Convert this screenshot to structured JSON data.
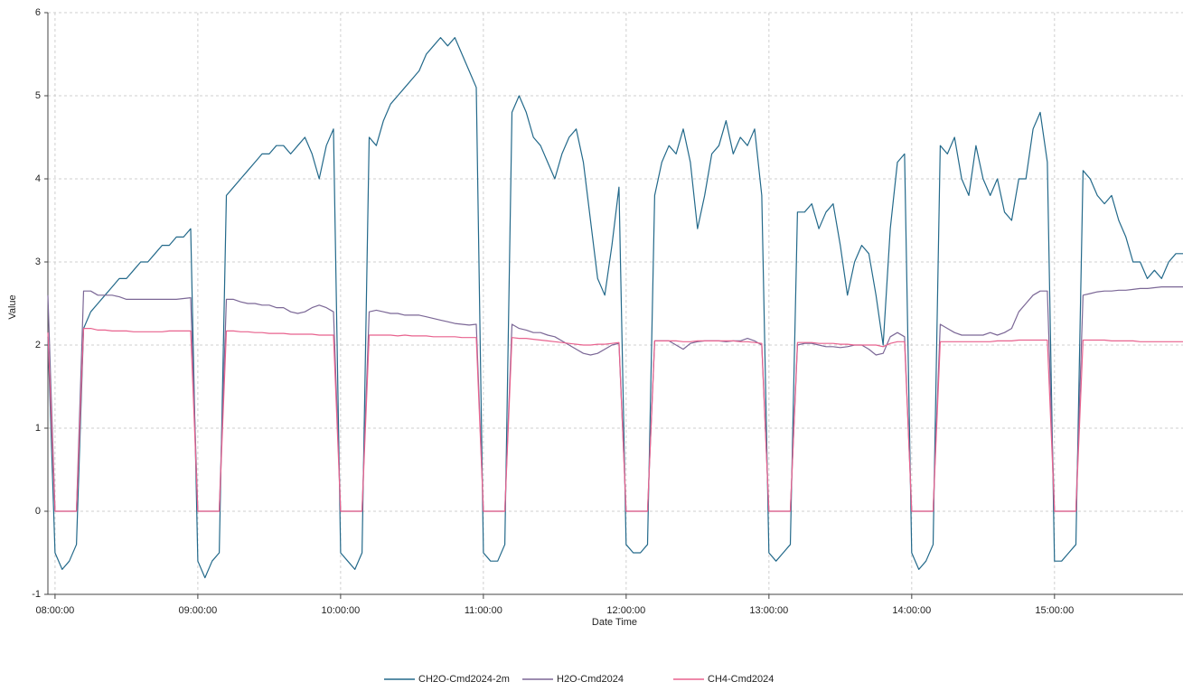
{
  "chart_data": {
    "type": "line",
    "x_label": "Date Time",
    "y_label": "Value",
    "x": [
      "07:57:00",
      "08:00:00",
      "08:03:00",
      "08:06:00",
      "08:09:00",
      "08:12:00",
      "08:15:00",
      "08:18:00",
      "08:21:00",
      "08:24:00",
      "08:27:00",
      "08:30:00",
      "08:33:00",
      "08:36:00",
      "08:39:00",
      "08:42:00",
      "08:45:00",
      "08:48:00",
      "08:51:00",
      "08:54:00",
      "08:57:00",
      "09:00:00",
      "09:03:00",
      "09:06:00",
      "09:09:00",
      "09:12:00",
      "09:15:00",
      "09:18:00",
      "09:21:00",
      "09:24:00",
      "09:27:00",
      "09:30:00",
      "09:33:00",
      "09:36:00",
      "09:39:00",
      "09:42:00",
      "09:45:00",
      "09:48:00",
      "09:51:00",
      "09:54:00",
      "09:57:00",
      "10:00:00",
      "10:03:00",
      "10:06:00",
      "10:09:00",
      "10:12:00",
      "10:15:00",
      "10:18:00",
      "10:21:00",
      "10:24:00",
      "10:27:00",
      "10:30:00",
      "10:33:00",
      "10:36:00",
      "10:39:00",
      "10:42:00",
      "10:45:00",
      "10:48:00",
      "10:51:00",
      "10:54:00",
      "10:57:00",
      "11:00:00",
      "11:03:00",
      "11:06:00",
      "11:09:00",
      "11:12:00",
      "11:15:00",
      "11:18:00",
      "11:21:00",
      "11:24:00",
      "11:27:00",
      "11:30:00",
      "11:33:00",
      "11:36:00",
      "11:39:00",
      "11:42:00",
      "11:45:00",
      "11:48:00",
      "11:51:00",
      "11:54:00",
      "11:57:00",
      "12:00:00",
      "12:03:00",
      "12:06:00",
      "12:09:00",
      "12:12:00",
      "12:15:00",
      "12:18:00",
      "12:21:00",
      "12:24:00",
      "12:27:00",
      "12:30:00",
      "12:33:00",
      "12:36:00",
      "12:39:00",
      "12:42:00",
      "12:45:00",
      "12:48:00",
      "12:51:00",
      "12:54:00",
      "12:57:00",
      "13:00:00",
      "13:03:00",
      "13:06:00",
      "13:09:00",
      "13:12:00",
      "13:15:00",
      "13:18:00",
      "13:21:00",
      "13:24:00",
      "13:27:00",
      "13:30:00",
      "13:33:00",
      "13:36:00",
      "13:39:00",
      "13:42:00",
      "13:45:00",
      "13:48:00",
      "13:51:00",
      "13:54:00",
      "13:57:00",
      "14:00:00",
      "14:03:00",
      "14:06:00",
      "14:09:00",
      "14:12:00",
      "14:15:00",
      "14:18:00",
      "14:21:00",
      "14:24:00",
      "14:27:00",
      "14:30:00",
      "14:33:00",
      "14:36:00",
      "14:39:00",
      "14:42:00",
      "14:45:00",
      "14:48:00",
      "14:51:00",
      "14:54:00",
      "14:57:00",
      "15:00:00",
      "15:03:00",
      "15:06:00",
      "15:09:00",
      "15:12:00",
      "15:15:00",
      "15:18:00",
      "15:21:00",
      "15:24:00",
      "15:27:00",
      "15:30:00",
      "15:33:00",
      "15:36:00",
      "15:39:00",
      "15:42:00",
      "15:45:00",
      "15:48:00",
      "15:51:00",
      "15:54:00"
    ],
    "series": [
      {
        "name": "CH2O-Cmd2024-2m",
        "color": "#23698a",
        "values": [
          2.1,
          -0.5,
          -0.7,
          -0.6,
          -0.4,
          2.2,
          2.4,
          2.5,
          2.6,
          2.7,
          2.8,
          2.8,
          2.9,
          3.0,
          3.0,
          3.1,
          3.2,
          3.2,
          3.3,
          3.3,
          3.4,
          -0.6,
          -0.8,
          -0.6,
          -0.5,
          3.8,
          3.9,
          4.0,
          4.1,
          4.2,
          4.3,
          4.3,
          4.4,
          4.4,
          4.3,
          4.4,
          4.5,
          4.3,
          4.0,
          4.4,
          4.6,
          -0.5,
          -0.6,
          -0.7,
          -0.5,
          4.5,
          4.4,
          4.7,
          4.9,
          5.0,
          5.1,
          5.2,
          5.3,
          5.5,
          5.6,
          5.7,
          5.6,
          5.7,
          5.5,
          5.3,
          5.1,
          -0.5,
          -0.6,
          -0.6,
          -0.4,
          4.8,
          5.0,
          4.8,
          4.5,
          4.4,
          4.2,
          4.0,
          4.3,
          4.5,
          4.6,
          4.2,
          3.5,
          2.8,
          2.6,
          3.2,
          3.9,
          -0.4,
          -0.5,
          -0.5,
          -0.4,
          3.8,
          4.2,
          4.4,
          4.3,
          4.6,
          4.2,
          3.4,
          3.8,
          4.3,
          4.4,
          4.7,
          4.3,
          4.5,
          4.4,
          4.6,
          3.8,
          -0.5,
          -0.6,
          -0.5,
          -0.4,
          3.6,
          3.6,
          3.7,
          3.4,
          3.6,
          3.7,
          3.2,
          2.6,
          3.0,
          3.2,
          3.1,
          2.6,
          2.0,
          3.4,
          4.2,
          4.3,
          -0.5,
          -0.7,
          -0.6,
          -0.4,
          4.4,
          4.3,
          4.5,
          4.0,
          3.8,
          4.4,
          4.0,
          3.8,
          4.0,
          3.6,
          3.5,
          4.0,
          4.0,
          4.6,
          4.8,
          4.2,
          -0.6,
          -0.6,
          -0.5,
          -0.4,
          4.1,
          4.0,
          3.8,
          3.7,
          3.8,
          3.5,
          3.3,
          3.0,
          3.0,
          2.8,
          2.9,
          2.8,
          3.0,
          3.1,
          3.1
        ]
      },
      {
        "name": "H2O-Cmd2024",
        "color": "#7b6796",
        "values": [
          2.6,
          0,
          0,
          0,
          0,
          2.65,
          2.65,
          2.6,
          2.6,
          2.6,
          2.58,
          2.55,
          2.55,
          2.55,
          2.55,
          2.55,
          2.55,
          2.55,
          2.55,
          2.56,
          2.57,
          0,
          0,
          0,
          0,
          2.55,
          2.55,
          2.52,
          2.5,
          2.5,
          2.48,
          2.48,
          2.45,
          2.45,
          2.4,
          2.38,
          2.4,
          2.45,
          2.48,
          2.45,
          2.4,
          0,
          0,
          0,
          0,
          2.4,
          2.42,
          2.4,
          2.38,
          2.38,
          2.36,
          2.36,
          2.36,
          2.34,
          2.32,
          2.3,
          2.28,
          2.26,
          2.25,
          2.24,
          2.25,
          0,
          0,
          0,
          0,
          2.25,
          2.2,
          2.18,
          2.15,
          2.15,
          2.12,
          2.1,
          2.05,
          2.0,
          1.95,
          1.9,
          1.88,
          1.9,
          1.95,
          2.0,
          2.02,
          0,
          0,
          0,
          0,
          2.05,
          2.05,
          2.05,
          2.0,
          1.95,
          2.02,
          2.04,
          2.05,
          2.05,
          2.05,
          2.04,
          2.05,
          2.05,
          2.08,
          2.05,
          2.0,
          0,
          0,
          0,
          0,
          2.0,
          2.02,
          2.02,
          2.0,
          1.98,
          1.98,
          1.97,
          1.98,
          2.0,
          2.0,
          1.95,
          1.88,
          1.9,
          2.1,
          2.15,
          2.1,
          0,
          0,
          0,
          0,
          2.25,
          2.2,
          2.15,
          2.12,
          2.12,
          2.12,
          2.12,
          2.15,
          2.12,
          2.15,
          2.2,
          2.4,
          2.5,
          2.6,
          2.65,
          2.65,
          0,
          0,
          0,
          0,
          2.6,
          2.62,
          2.64,
          2.65,
          2.65,
          2.66,
          2.66,
          2.67,
          2.68,
          2.68,
          2.69,
          2.7,
          2.7,
          2.7,
          2.7
        ]
      },
      {
        "name": "CH4-Cmd2024",
        "color": "#e8628e",
        "values": [
          2.15,
          0,
          0,
          0,
          0,
          2.2,
          2.2,
          2.18,
          2.18,
          2.17,
          2.17,
          2.17,
          2.16,
          2.16,
          2.16,
          2.16,
          2.16,
          2.17,
          2.17,
          2.17,
          2.17,
          0,
          0,
          0,
          0,
          2.17,
          2.17,
          2.16,
          2.16,
          2.15,
          2.15,
          2.14,
          2.14,
          2.14,
          2.13,
          2.13,
          2.13,
          2.13,
          2.12,
          2.12,
          2.12,
          0,
          0,
          0,
          0,
          2.12,
          2.12,
          2.12,
          2.12,
          2.11,
          2.12,
          2.11,
          2.11,
          2.11,
          2.1,
          2.1,
          2.1,
          2.1,
          2.09,
          2.09,
          2.09,
          0,
          0,
          0,
          0,
          2.09,
          2.08,
          2.08,
          2.07,
          2.06,
          2.05,
          2.04,
          2.03,
          2.02,
          2.01,
          2.0,
          2.0,
          2.01,
          2.01,
          2.02,
          2.03,
          0,
          0,
          0,
          0,
          2.05,
          2.05,
          2.05,
          2.05,
          2.04,
          2.04,
          2.05,
          2.05,
          2.05,
          2.05,
          2.05,
          2.05,
          2.04,
          2.04,
          2.03,
          2.02,
          0,
          0,
          0,
          0,
          2.03,
          2.03,
          2.03,
          2.02,
          2.02,
          2.02,
          2.01,
          2.01,
          2.0,
          2.0,
          2.0,
          2.0,
          1.98,
          2.02,
          2.04,
          2.04,
          0,
          0,
          0,
          0,
          2.04,
          2.04,
          2.04,
          2.04,
          2.04,
          2.04,
          2.04,
          2.04,
          2.05,
          2.05,
          2.05,
          2.06,
          2.06,
          2.06,
          2.06,
          2.06,
          0,
          0,
          0,
          0,
          2.06,
          2.06,
          2.06,
          2.06,
          2.05,
          2.05,
          2.05,
          2.05,
          2.04,
          2.04,
          2.04,
          2.04,
          2.04,
          2.04,
          2.04
        ]
      }
    ],
    "xlim": [
      "07:57:00",
      "15:54:00"
    ],
    "xticks": [
      "08:00:00",
      "09:00:00",
      "10:00:00",
      "11:00:00",
      "12:00:00",
      "13:00:00",
      "14:00:00",
      "15:00:00"
    ],
    "ylim": [
      -1,
      6
    ],
    "yticks": [
      -1,
      0,
      1,
      2,
      3,
      4,
      5,
      6
    ],
    "grid": true,
    "legend": "bottom"
  }
}
